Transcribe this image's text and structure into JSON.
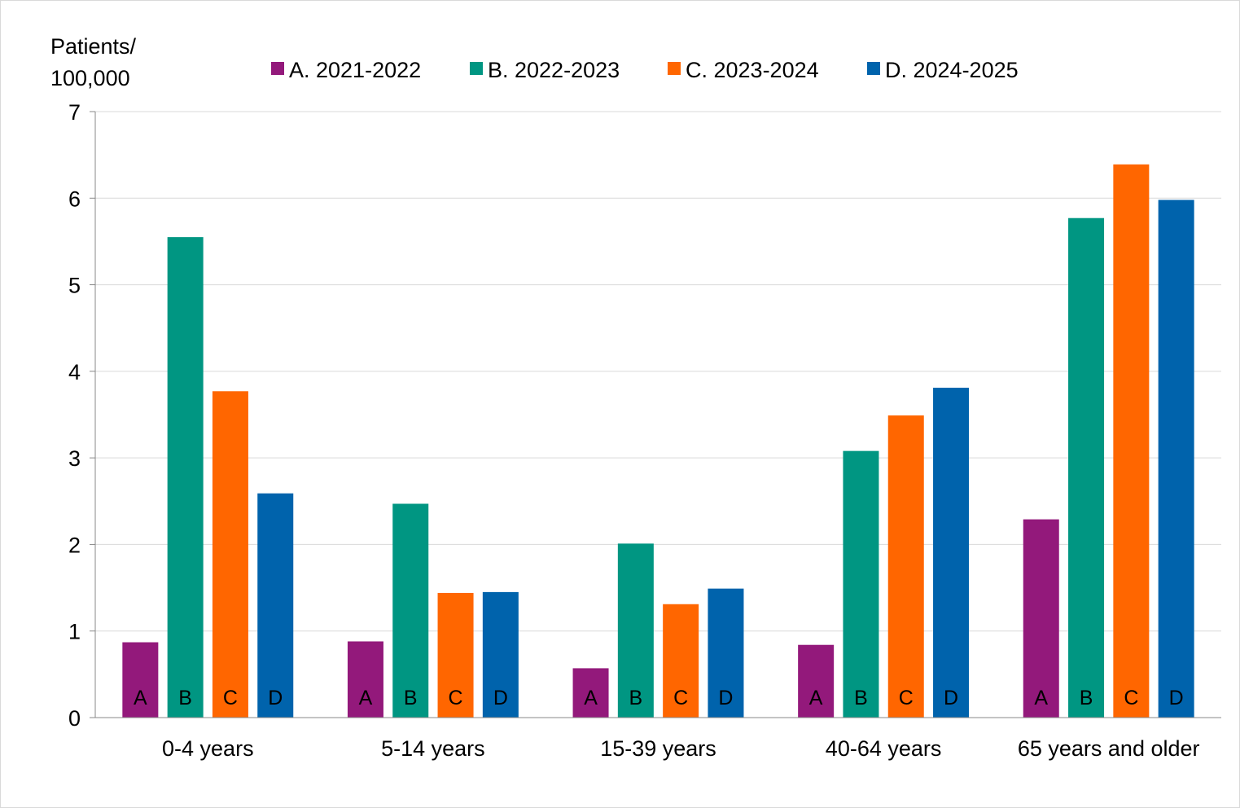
{
  "chart_data": {
    "type": "bar",
    "ylabel_lines": [
      "Patients/",
      "100,000"
    ],
    "xlabel": "",
    "ylim": [
      0,
      7
    ],
    "yticks": [
      0,
      1,
      2,
      3,
      4,
      5,
      6,
      7
    ],
    "grid": true,
    "legend_position": "top",
    "categories": [
      "0-4 years",
      "5-14 years",
      "15-39 years",
      "40-64 years",
      "65 years and older"
    ],
    "series": [
      {
        "name": "A. 2021-2022",
        "letter": "A",
        "color": "#93197b",
        "values": [
          0.87,
          0.88,
          0.57,
          0.84,
          2.29
        ]
      },
      {
        "name": "B. 2022-2023",
        "letter": "B",
        "color": "#009682",
        "values": [
          5.55,
          2.47,
          2.01,
          3.08,
          5.77
        ]
      },
      {
        "name": "C. 2023-2024",
        "letter": "C",
        "color": "#ff6600",
        "values": [
          3.77,
          1.44,
          1.31,
          3.49,
          6.39
        ]
      },
      {
        "name": "D. 2024-2025",
        "letter": "D",
        "color": "#0063ac",
        "values": [
          2.59,
          1.45,
          1.49,
          3.81,
          5.98
        ]
      }
    ]
  }
}
